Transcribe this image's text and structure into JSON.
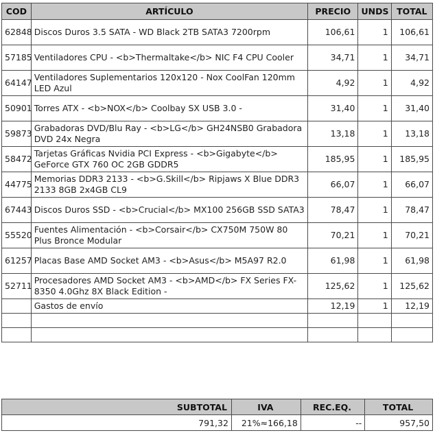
{
  "headers": {
    "cod": "COD",
    "articulo": "ARTÍCULO",
    "precio": "PRECIO",
    "unds": "UNDS",
    "total": "TOTAL"
  },
  "items": [
    {
      "cod": "62848",
      "articulo": "Discos Duros 3.5 SATA - WD Black 2TB SATA3 7200rpm",
      "precio": "106,61",
      "unds": "1",
      "total": "106,61"
    },
    {
      "cod": "57185",
      "articulo": "Ventiladores CPU - <b>Thermaltake</b> NIC F4 CPU Cooler",
      "precio": "34,71",
      "unds": "1",
      "total": "34,71"
    },
    {
      "cod": "64147",
      "articulo": "Ventiladores Suplementarios 120x120 - Nox CoolFan 120mm LED Azul",
      "precio": "4,92",
      "unds": "1",
      "total": "4,92"
    },
    {
      "cod": "50901",
      "articulo": "Torres ATX - <b>NOX</b> Coolbay SX USB 3.0 -",
      "precio": "31,40",
      "unds": "1",
      "total": "31,40"
    },
    {
      "cod": "59873",
      "articulo": "Grabadoras DVD/Blu Ray - <b>LG</b> GH24NSB0 Grabadora DVD 24x Negra",
      "precio": "13,18",
      "unds": "1",
      "total": "13,18"
    },
    {
      "cod": "58472",
      "articulo": "Tarjetas Gráficas Nvidia PCI Express - <b>Gigabyte</b> GeForce GTX 760 OC 2GB GDDR5",
      "precio": "185,95",
      "unds": "1",
      "total": "185,95"
    },
    {
      "cod": "44775",
      "articulo": "Memorias DDR3 2133 - <b>G.Skill</b> Ripjaws X Blue DDR3 2133 8GB 2x4GB CL9",
      "precio": "66,07",
      "unds": "1",
      "total": "66,07"
    },
    {
      "cod": "67443",
      "articulo": "Discos Duros SSD - <b>Crucial</b> MX100 256GB SSD SATA3",
      "precio": "78,47",
      "unds": "1",
      "total": "78,47"
    },
    {
      "cod": "55520",
      "articulo": "Fuentes Alimentación - <b>Corsair</b> CX750M 750W 80 Plus Bronce Modular",
      "precio": "70,21",
      "unds": "1",
      "total": "70,21"
    },
    {
      "cod": "61257",
      "articulo": "Placas Base AMD Socket AM3 - <b>Asus</b> M5A97 R2.0",
      "precio": "61,98",
      "unds": "1",
      "total": "61,98"
    },
    {
      "cod": "52711",
      "articulo": "Procesadores AMD Socket AM3 - <b>AMD</b> FX Series FX-8350 4.0Ghz 8X Black Edition -",
      "precio": "125,62",
      "unds": "1",
      "total": "125,62"
    },
    {
      "cod": "",
      "articulo": "Gastos de envío",
      "precio": "12,19",
      "unds": "1",
      "total": "12,19"
    }
  ],
  "totals": {
    "subtotal_label": "SUBTOTAL",
    "iva_label": "IVA",
    "receq_label": "REC.EQ.",
    "total_label": "TOTAL",
    "subtotal": "791,32",
    "iva": "21%≈166,18",
    "receq": "--",
    "total": "957,50"
  }
}
